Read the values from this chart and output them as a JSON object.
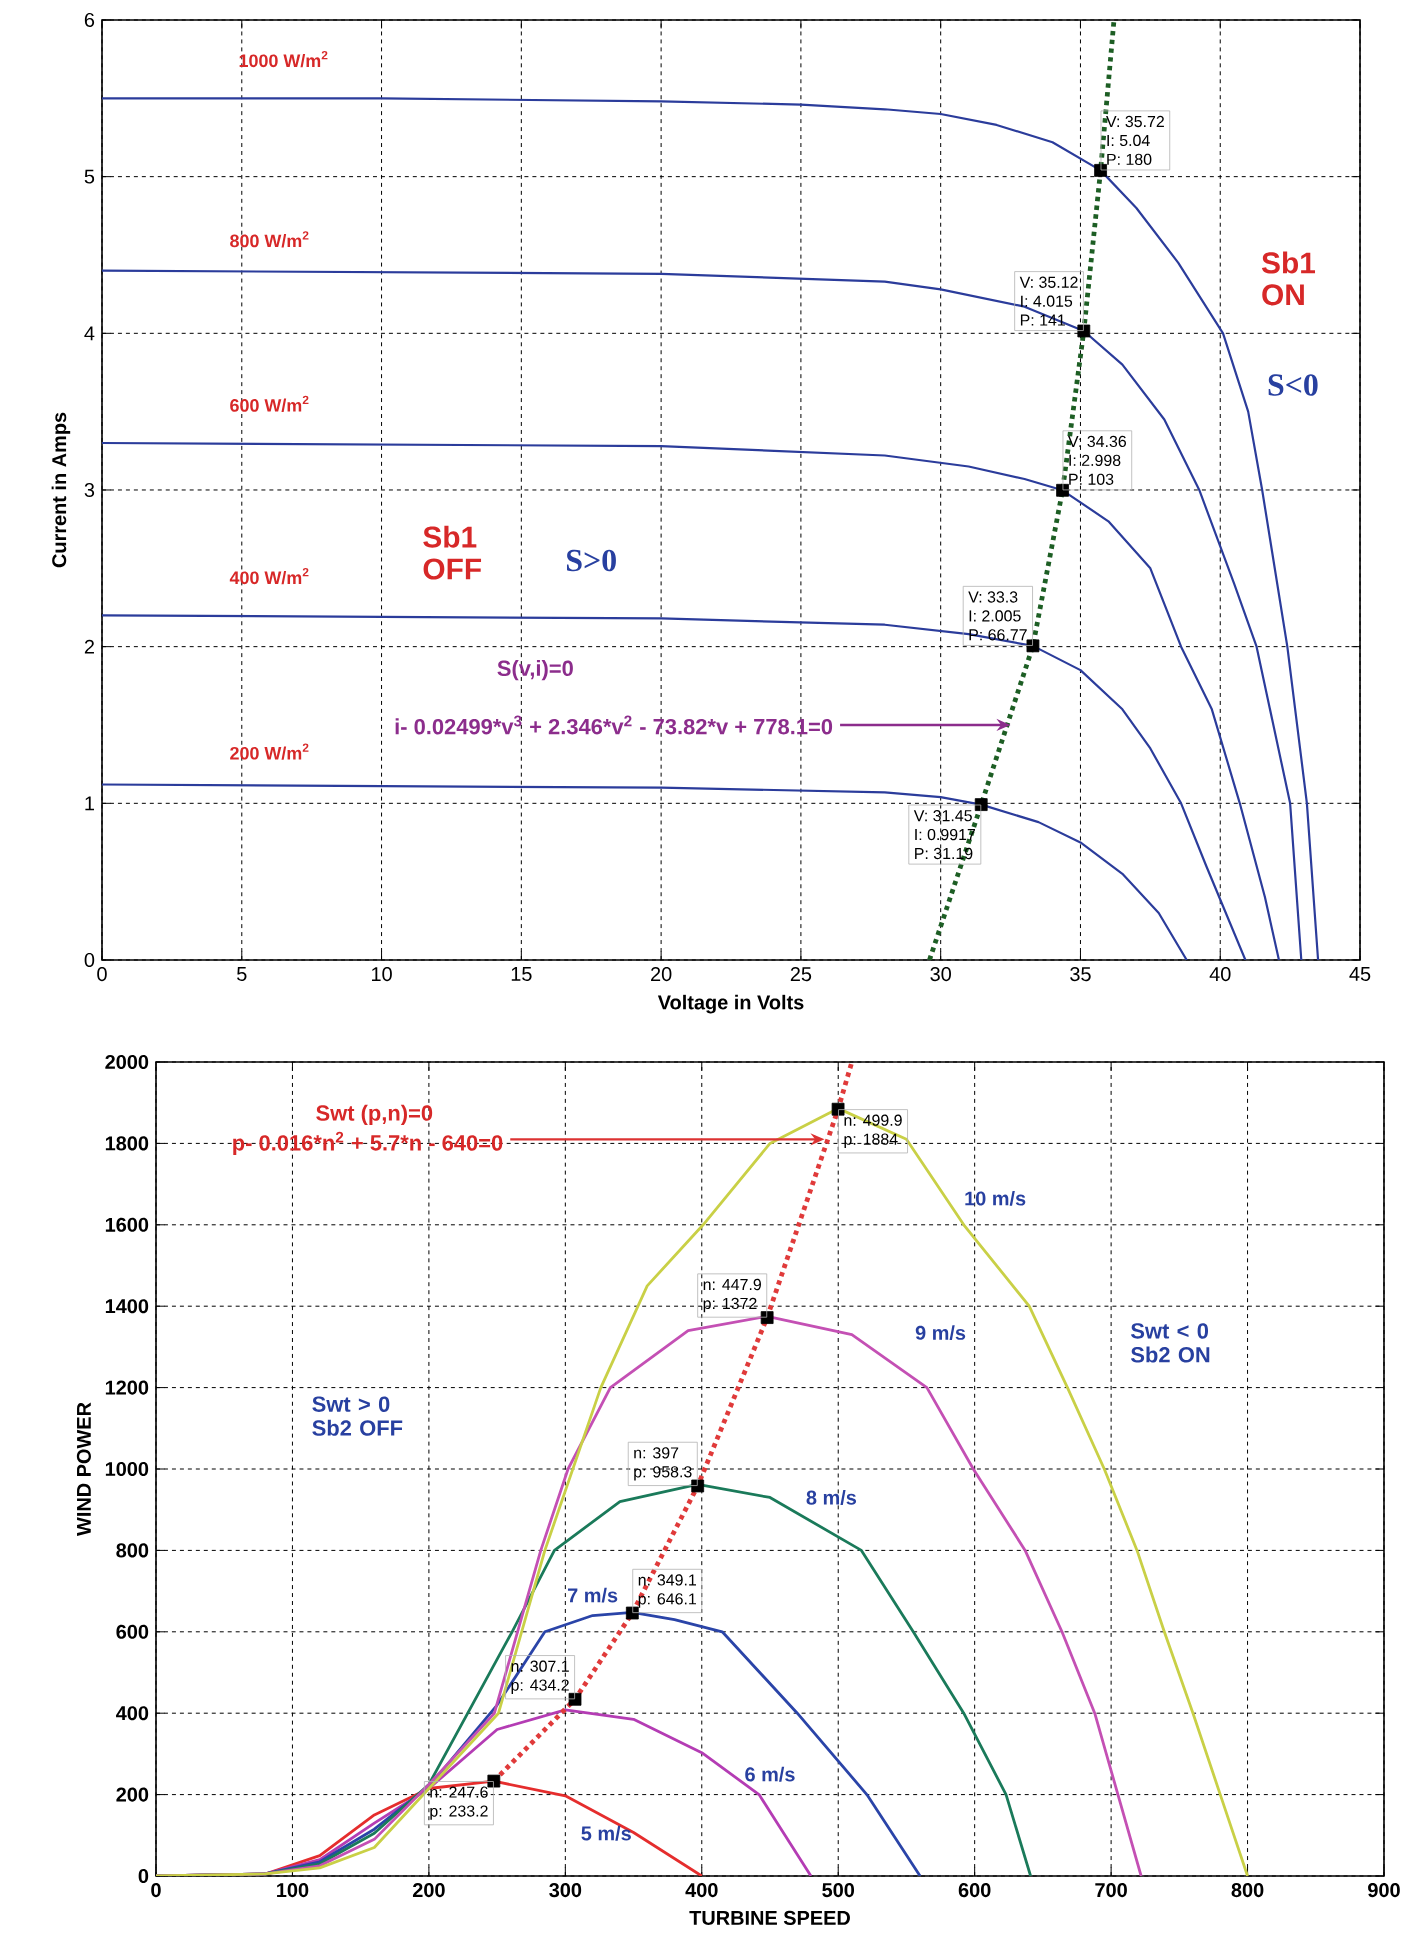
{
  "chart_data": [
    {
      "type": "line",
      "xlabel": "Voltage in Volts",
      "ylabel": "Current in Amps",
      "xlim": [
        0,
        45
      ],
      "ylim": [
        0,
        6
      ],
      "xticks": [
        0,
        5,
        10,
        15,
        20,
        25,
        30,
        35,
        40,
        45
      ],
      "yticks": [
        0,
        1,
        2,
        3,
        4,
        5,
        6
      ],
      "grid": true,
      "series": [
        {
          "name": "1000 W/m$^{2}$",
          "color": "#2b3c9b",
          "x": [
            0,
            10,
            20,
            25,
            28,
            30,
            32,
            34,
            35.72,
            37,
            38.5,
            40.1,
            41,
            41.5,
            42.4,
            43.1,
            43.5
          ],
          "values": [
            5.5,
            5.5,
            5.48,
            5.46,
            5.43,
            5.4,
            5.33,
            5.22,
            5.04,
            4.8,
            4.45,
            4.0,
            3.5,
            3.0,
            2.0,
            1.0,
            0
          ]
        },
        {
          "name": "800 W/m$^{2}$",
          "color": "#2b3c9b",
          "x": [
            0,
            20,
            28,
            30,
            33,
            35.12,
            36.5,
            38,
            39.25,
            40.5,
            41.3,
            42.5,
            42.9
          ],
          "values": [
            4.4,
            4.38,
            4.33,
            4.28,
            4.17,
            4.015,
            3.8,
            3.45,
            3.0,
            2.4,
            2.0,
            1.0,
            0
          ]
        },
        {
          "name": "600 W/m$^{2}$",
          "color": "#2b3c9b",
          "x": [
            0,
            20,
            28,
            31,
            33,
            34.36,
            36,
            37.5,
            38.6,
            39.7,
            40.7,
            41.6,
            42.1
          ],
          "values": [
            3.3,
            3.28,
            3.22,
            3.15,
            3.07,
            2.998,
            2.8,
            2.5,
            2.0,
            1.6,
            1.0,
            0.4,
            0
          ]
        },
        {
          "name": "400 W/m$^{2}$",
          "color": "#2b3c9b",
          "x": [
            0,
            20,
            28,
            31,
            33.3,
            35,
            36.5,
            37.5,
            38.6,
            39.5,
            40.9
          ],
          "values": [
            2.2,
            2.18,
            2.14,
            2.08,
            2.005,
            1.85,
            1.6,
            1.35,
            1.0,
            0.6,
            0
          ]
        },
        {
          "name": "200 W/m$^{2}$",
          "color": "#2b3c9b",
          "x": [
            0,
            20,
            28,
            30,
            31.45,
            33.5,
            35,
            36.5,
            37.8,
            38.8
          ],
          "values": [
            1.12,
            1.1,
            1.07,
            1.04,
            0.9917,
            0.88,
            0.75,
            0.55,
            0.3,
            0
          ]
        },
        {
          "color": "#1d5e24",
          "line_style": "dotted",
          "x": [
            29.6,
            31.45,
            33.3,
            34.36,
            35.12,
            35.72,
            36.2
          ],
          "values": [
            0,
            0.9917,
            2.005,
            2.998,
            4.015,
            5.04,
            6
          ]
        },
        {
          "type": "scatter",
          "marker": "square",
          "color": "#000000",
          "x": [
            31.45,
            33.3,
            34.36,
            35.12,
            35.72
          ],
          "values": [
            0.9917,
            2.005,
            2.998,
            4.015,
            5.04
          ]
        }
      ],
      "annotations": [
        "Sb1 OFF",
        "S>0",
        "Sb1 ON",
        "S<0",
        "S(v,i)=0",
        {
          "text": "i- 0.02499*v$^{3}$ + 2.346*v$^{2}$ - 73.82*v + 778.1=0",
          "x": 32.5,
          "y": 1.5
        },
        {
          "text": "V: 35.72",
          "x": 35.72,
          "y": 5.04
        },
        {
          "text": "I: 5.04",
          "x": 35.72,
          "y": 5.04
        },
        {
          "text": "P: 180",
          "x": 35.72,
          "y": 5.04
        },
        {
          "text": "V: 35.12",
          "x": 35.12,
          "y": 4.015
        },
        {
          "text": "I: 4.015",
          "x": 35.12,
          "y": 4.015
        },
        {
          "text": "P: 141",
          "x": 35.12,
          "y": 4.015
        },
        {
          "text": "V: 34.36",
          "x": 34.36,
          "y": 2.998
        },
        {
          "text": "I: 2.998",
          "x": 34.36,
          "y": 2.998
        },
        {
          "text": "P: 103",
          "x": 34.36,
          "y": 2.998
        },
        {
          "text": "V: 33.3",
          "x": 33.3,
          "y": 2.005
        },
        {
          "text": "I: 2.005",
          "x": 33.3,
          "y": 2.005
        },
        {
          "text": "P: 66.77",
          "x": 33.3,
          "y": 2.005
        },
        {
          "text": "V: 31.45",
          "x": 31.45,
          "y": 0.9917
        },
        {
          "text": "I: 0.9917",
          "x": 31.45,
          "y": 0.9917
        },
        {
          "text": "P: 31.19",
          "x": 31.45,
          "y": 0.9917
        }
      ]
    },
    {
      "type": "line",
      "xlabel": "TURBINE SPEED",
      "ylabel": "WIND POWER",
      "xlim": [
        0,
        900
      ],
      "ylim": [
        0,
        2000
      ],
      "xticks": [
        0,
        100,
        200,
        300,
        400,
        500,
        600,
        700,
        800,
        900
      ],
      "yticks": [
        0,
        200,
        400,
        600,
        800,
        1000,
        1200,
        1400,
        1600,
        1800,
        2000
      ],
      "grid": true,
      "series": [
        {
          "name": "5 m/s",
          "color": "#e52d2d",
          "x": [
            0,
            80,
            120,
            160,
            200,
            247.6,
            300,
            350,
            400
          ],
          "values": [
            0,
            5,
            50,
            150,
            215,
            233,
            197,
            107,
            0
          ]
        },
        {
          "name": "6 m/s",
          "color": "#b43cb4",
          "x": [
            0,
            80,
            120,
            160,
            200,
            250,
            300,
            350,
            400,
            442,
            480
          ],
          "values": [
            0,
            5,
            40,
            130,
            215,
            360,
            408,
            385,
            303,
            200,
            0
          ]
        },
        {
          "name": "7 m/s",
          "color": "#2a44a8",
          "x": [
            0,
            80,
            120,
            160,
            200,
            250,
            285,
            320,
            349.1,
            380,
            415,
            470,
            521,
            560
          ],
          "values": [
            0,
            5,
            35,
            115,
            220,
            420,
            600,
            640,
            648,
            630,
            600,
            400,
            200,
            0
          ]
        },
        {
          "name": "8 m/s",
          "color": "#1a7a5a",
          "x": [
            0,
            80,
            120,
            160,
            200,
            261,
            292,
            340,
            397,
            450,
            517,
            555,
            592,
            623,
            641
          ],
          "values": [
            0,
            5,
            30,
            105,
            225,
            600,
            800,
            920,
            962,
            930,
            800,
            600,
            400,
            200,
            0
          ]
        },
        {
          "name": "9 m/s",
          "color": "#c450b4",
          "x": [
            0,
            80,
            120,
            160,
            200,
            248,
            265,
            282,
            302,
            333,
            390,
            447.9,
            510,
            565,
            599,
            637,
            664,
            688,
            705,
            722
          ],
          "values": [
            0,
            5,
            25,
            90,
            225,
            400,
            600,
            800,
            1000,
            1200,
            1340,
            1375,
            1330,
            1200,
            1000,
            800,
            600,
            400,
            200,
            0
          ]
        },
        {
          "name": "10 m/s",
          "color": "#c9d046",
          "x": [
            0,
            80,
            120,
            160,
            200,
            251,
            285,
            326,
            360,
            401,
            450,
            499.9,
            550,
            592,
            640,
            668,
            695,
            719,
            739,
            760,
            780,
            800
          ],
          "values": [
            0,
            5,
            20,
            70,
            215,
            400,
            800,
            1200,
            1450,
            1600,
            1800,
            1886,
            1810,
            1600,
            1400,
            1200,
            1000,
            800,
            600,
            400,
            200,
            0
          ]
        },
        {
          "color": "#e03a3a",
          "line_style": "dotted",
          "x": [
            247.6,
            307.1,
            349.1,
            397,
            447.9,
            499.9,
            510
          ],
          "values": [
            233.2,
            434.2,
            646.1,
            958.3,
            1372,
            1884,
            2000
          ]
        },
        {
          "type": "scatter",
          "marker": "square",
          "color": "#000000",
          "x": [
            247.6,
            307.1,
            349.1,
            397,
            447.9,
            499.9
          ],
          "values": [
            233.2,
            434.2,
            646.1,
            958.3,
            1372,
            1884
          ]
        }
      ],
      "annotations": [
        "Swt (p,n)=0",
        {
          "text": "p- 0.016*n$^{2}$ + 5.7*n - 640=0",
          "x": 490,
          "y": 1810
        },
        "Swt > 0 Sb2 OFF",
        "Swt < 0 Sb2 ON",
        {
          "text": "n: 499.9",
          "x": 499.9,
          "y": 1884
        },
        {
          "text": "p: 1884",
          "x": 499.9,
          "y": 1884
        },
        {
          "text": "n: 447.9",
          "x": 447.9,
          "y": 1372
        },
        {
          "text": "p: 1372",
          "x": 447.9,
          "y": 1372
        },
        {
          "text": "n: 397",
          "x": 397,
          "y": 958.3
        },
        {
          "text": "p: 958.3",
          "x": 397,
          "y": 958.3
        },
        {
          "text": "n: 349.1",
          "x": 349.1,
          "y": 646.1
        },
        {
          "text": "p: 646.1",
          "x": 349.1,
          "y": 646.1
        },
        {
          "text": "n: 307.1",
          "x": 307.1,
          "y": 434.2
        },
        {
          "text": "p: 434.2",
          "x": 307.1,
          "y": 434.2
        },
        {
          "text": "n: 247.6",
          "x": 247.6,
          "y": 233.2
        },
        {
          "text": "p: 233.2",
          "x": 247.6,
          "y": 233.2
        }
      ]
    }
  ]
}
